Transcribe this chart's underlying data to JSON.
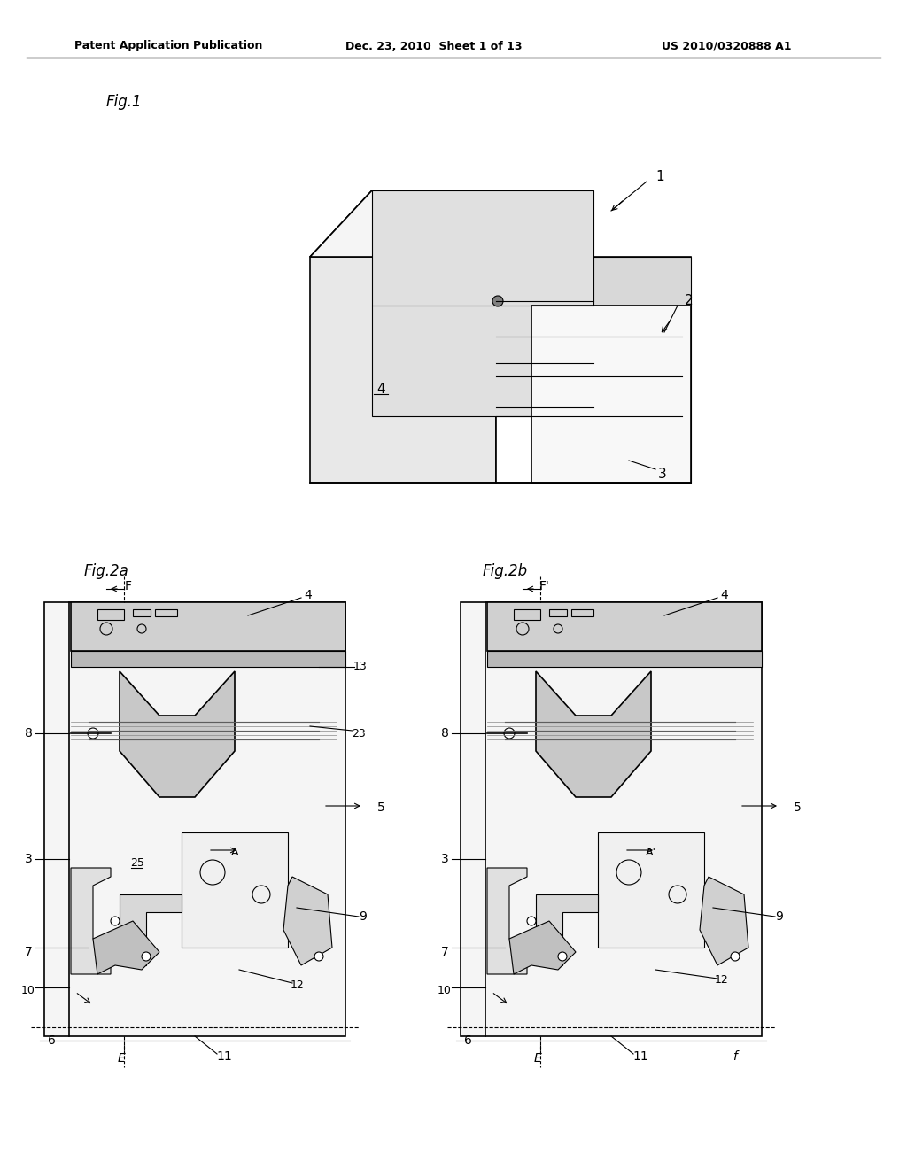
{
  "bg_color": "#ffffff",
  "header_left": "Patent Application Publication",
  "header_mid": "Dec. 23, 2010  Sheet 1 of 13",
  "header_right": "US 2010/0320888 A1",
  "fig1_label": "Fig.1",
  "fig2a_label": "Fig.2a",
  "fig2b_label": "Fig.2b",
  "font_color": "#000000",
  "line_color": "#000000",
  "gray_fill": "#d0d0d0",
  "light_gray": "#e8e8e8",
  "dark_gray": "#808080"
}
